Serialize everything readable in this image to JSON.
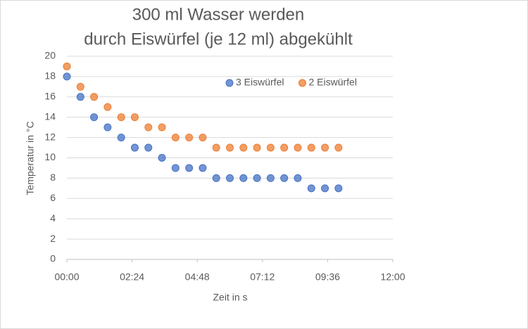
{
  "chart_data": {
    "type": "scatter",
    "title": [
      "300 ml Wasser  werden",
      "durch  Eiswürfel  (je 12 ml) abgekühlt"
    ],
    "x_label": "Zeit in s",
    "y_label": "Temperatur in °C",
    "series": [
      {
        "name": "3 Eiswürfel",
        "color": "#4472c4",
        "x": [
          0,
          30,
          60,
          90,
          120,
          150,
          180,
          210,
          240,
          270,
          300,
          330,
          360,
          390,
          420,
          450,
          480,
          510,
          540,
          570,
          600
        ],
        "values": [
          18,
          16,
          14,
          13,
          12,
          11,
          11,
          10,
          9,
          9,
          9,
          8,
          8,
          8,
          8,
          8,
          8,
          8,
          7,
          7,
          7
        ]
      },
      {
        "name": "2 Eiswürfel",
        "color": "#ed7d31",
        "x": [
          0,
          30,
          60,
          90,
          120,
          150,
          180,
          210,
          240,
          270,
          300,
          330,
          360,
          390,
          420,
          450,
          480,
          510,
          540,
          570,
          600
        ],
        "values": [
          19,
          17,
          16,
          15,
          14,
          14,
          13,
          13,
          12,
          12,
          12,
          11,
          11,
          11,
          11,
          11,
          11,
          11,
          11,
          11,
          11
        ]
      }
    ],
    "xlim": [
      0,
      720
    ],
    "xticks": [
      {
        "value": 0,
        "label": "00:00"
      },
      {
        "value": 144,
        "label": "02:24"
      },
      {
        "value": 288,
        "label": "04:48"
      },
      {
        "value": 432,
        "label": "07:12"
      },
      {
        "value": 576,
        "label": "09:36"
      },
      {
        "value": 720,
        "label": "12:00"
      }
    ],
    "ylim": [
      0,
      20
    ],
    "yticks": [
      0,
      2,
      4,
      6,
      8,
      10,
      12,
      14,
      16,
      18,
      20
    ],
    "grid": true,
    "legend": "top-right"
  }
}
